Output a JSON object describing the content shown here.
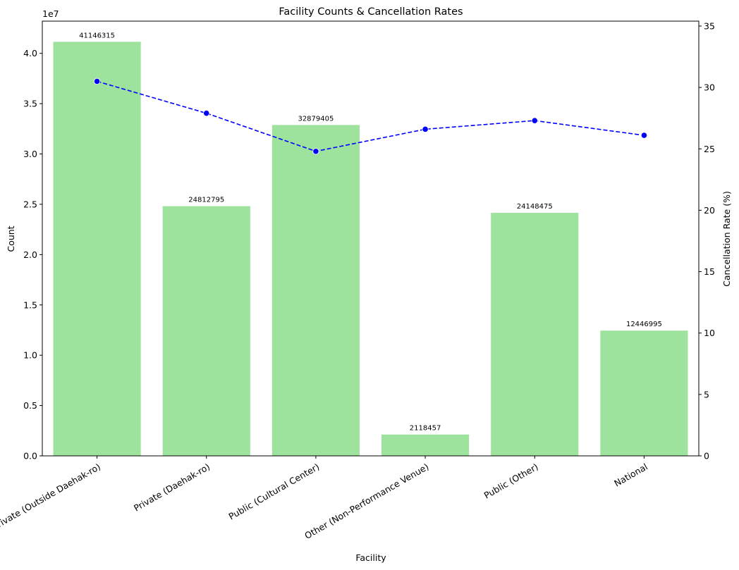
{
  "chart_data": {
    "type": "bar",
    "title": "Facility Counts & Cancellation Rates",
    "xlabel": "Facility",
    "ylabel": "Count",
    "y2label": "Cancellation Rate (%)",
    "y_exponent_label": "1e7",
    "categories": [
      "Private (Outside Daehak-ro)",
      "Private (Daehak-ro)",
      "Public (Cultural Center)",
      "Other (Non-Performance Venue)",
      "Public (Other)",
      "National"
    ],
    "series": [
      {
        "type": "bar",
        "axis": "left",
        "values": [
          41146315,
          24812795,
          32879405,
          2118457,
          24148475,
          12446995
        ],
        "data_labels": [
          "41146315",
          "24812795",
          "32879405",
          "2118457",
          "24148475",
          "12446995"
        ],
        "color": "#9de29d"
      },
      {
        "type": "line",
        "axis": "right",
        "values": [
          30.5,
          27.9,
          24.8,
          26.6,
          27.3,
          26.1
        ],
        "color": "#0000ff",
        "line_style": "dashed",
        "marker": "circle"
      }
    ],
    "ylim": [
      0,
      43200000
    ],
    "y2lim": [
      0,
      35.4
    ],
    "y_ticks": [
      0,
      5000000,
      10000000,
      15000000,
      20000000,
      25000000,
      30000000,
      35000000,
      40000000
    ],
    "y_tick_labels": [
      "0.0",
      "0.5",
      "1.0",
      "1.5",
      "2.0",
      "2.5",
      "3.0",
      "3.5",
      "4.0"
    ],
    "y2_ticks": [
      0,
      5,
      10,
      15,
      20,
      25,
      30,
      35
    ],
    "y2_tick_labels": [
      "0",
      "5",
      "10",
      "15",
      "20",
      "25",
      "30",
      "35"
    ],
    "x_tick_rotation_deg": -30,
    "grid": false,
    "legend": "none"
  }
}
